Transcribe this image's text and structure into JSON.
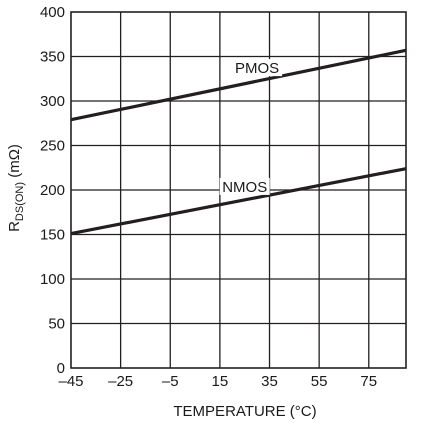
{
  "chart_data": {
    "type": "line",
    "title": "",
    "xlabel": "TEMPERATURE (°C)",
    "ylabel": {
      "base": "R",
      "subscript": "DS(ON)",
      "unit": " (mΩ)"
    },
    "xlim": [
      -45,
      90
    ],
    "ylim": [
      0,
      400
    ],
    "x_ticks": [
      -45,
      -25,
      -5,
      15,
      35,
      55,
      75
    ],
    "y_ticks": [
      0,
      50,
      100,
      150,
      200,
      250,
      300,
      350,
      400
    ],
    "grid": true,
    "series": [
      {
        "name": "PMOS",
        "x": [
          -45,
          90
        ],
        "y": [
          279,
          357
        ]
      },
      {
        "name": "NMOS",
        "x": [
          -45,
          90
        ],
        "y": [
          151,
          224
        ]
      }
    ],
    "colors": {
      "line": "#231f20",
      "grid": "#231f20",
      "text": "#1a1a1a"
    }
  }
}
